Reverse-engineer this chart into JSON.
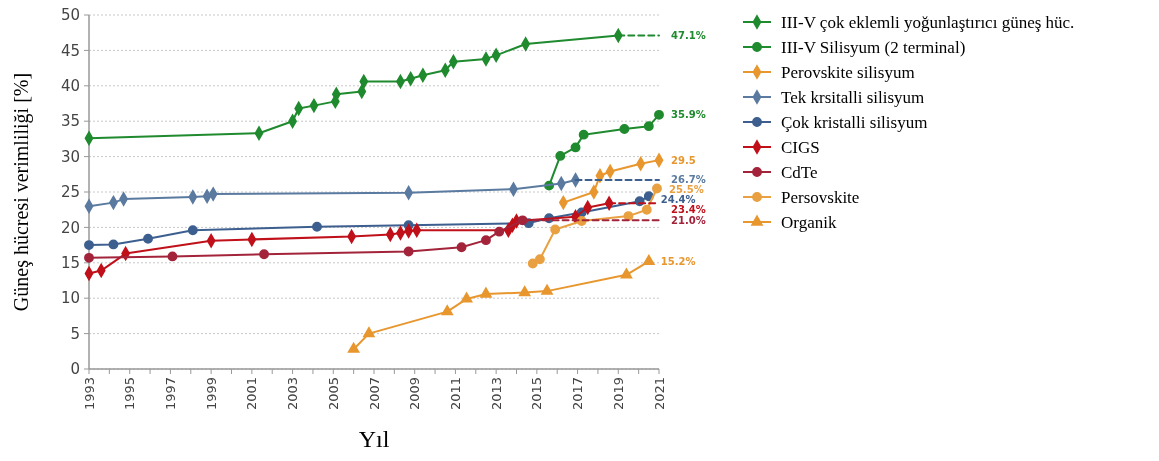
{
  "chart_data": {
    "type": "line",
    "xlabel": "Yıl",
    "ylabel": "Güneş hücresi verimliliği [%]",
    "xlim": [
      1993,
      2021
    ],
    "ylim": [
      0,
      50
    ],
    "xticks": [
      1993,
      {
        "value": 1994,
        "label": null
      },
      1995,
      {
        "value": 1996,
        "label": null
      },
      1997,
      {
        "value": 1998,
        "label": null
      },
      1999,
      {
        "value": 2000,
        "label": null
      },
      2001,
      {
        "value": 2002,
        "label": null
      },
      2003,
      {
        "value": 2004,
        "label": null
      },
      2005,
      {
        "value": 2006,
        "label": null
      },
      2007,
      {
        "value": 2008,
        "label": null
      },
      2009,
      {
        "value": 2010,
        "label": null
      },
      2011,
      {
        "value": 2012,
        "label": null
      },
      2013,
      {
        "value": 2014,
        "label": null
      },
      2015,
      {
        "value": 2016,
        "label": null
      },
      2017,
      {
        "value": 2018,
        "label": null
      },
      2019,
      {
        "value": 2020,
        "label": null
      },
      2021
    ],
    "yticks": [
      0,
      5,
      10,
      15,
      20,
      25,
      30,
      35,
      40,
      45,
      50
    ],
    "grid": "y",
    "legend": "right",
    "line_style": "solid",
    "series": [
      {
        "name": "III-V çok eklemli yoğunlaştırıcı güneş hüc.",
        "color": "#1f8a2e",
        "marker": "diamond",
        "x": [
          1993,
          2001.35,
          2003,
          2003.3,
          2004.05,
          2005.1,
          2005.15,
          2006.4,
          2006.5,
          2008.3,
          2008.8,
          2009.4,
          2010.5,
          2010.9,
          2012.5,
          2013,
          2014.45,
          2019
        ],
        "values": [
          32.6,
          33.3,
          35,
          36.8,
          37.2,
          37.8,
          38.8,
          39.2,
          40.6,
          40.6,
          41,
          41.5,
          42.2,
          43.4,
          43.8,
          44.3,
          45.9,
          47.1
        ]
      },
      {
        "name": "III-V Silisyum (2 terminal)",
        "color": "#1f8a2e",
        "marker": "circle",
        "x": [
          2015.6,
          2016.15,
          2016.9,
          2017.3,
          2019.3,
          2020.5,
          2021
        ],
        "values": [
          25.9,
          30.1,
          31.3,
          33.1,
          33.9,
          34.3,
          35.9
        ]
      },
      {
        "name": "Perovskite silisyum",
        "color": "#e8962e",
        "marker": "diamond",
        "x": [
          2016.3,
          2017.8,
          2018.1,
          2018.6,
          2020.1,
          2021
        ],
        "values": [
          23.5,
          25,
          27.3,
          27.9,
          29,
          29.5
        ]
      },
      {
        "name": "Tek krsitalli silisyum",
        "color": "#5a7aa0",
        "marker": "diamond",
        "x": [
          1993,
          1994.2,
          1994.7,
          1998.1,
          1998.8,
          1999.1,
          2008.7,
          2013.85,
          2016.2,
          2016.9
        ],
        "values": [
          23,
          23.5,
          24,
          24.3,
          24.4,
          24.7,
          24.9,
          25.4,
          26.2,
          26.7
        ]
      },
      {
        "name": "Çok kristalli silisyum",
        "color": "#3c5f8f",
        "marker": "circle",
        "x": [
          1993,
          1994.2,
          1995.9,
          1998.1,
          2004.2,
          2008.7,
          2014.6,
          2015.6,
          2017.2,
          2020.05,
          2020.5
        ],
        "values": [
          17.5,
          17.6,
          18.4,
          19.6,
          20.1,
          20.3,
          20.6,
          21.3,
          22.1,
          23.7,
          24.4
        ]
      },
      {
        "name": "CIGS",
        "color": "#c0101a",
        "marker": "diamond",
        "x": [
          1993,
          1993.6,
          1994.8,
          1999,
          2001,
          2005.9,
          2007.8,
          2008.3,
          2008.7,
          2009.1,
          2013.6,
          2013.8,
          2014,
          2016.9,
          2017.5,
          2018.55
        ],
        "values": [
          13.5,
          13.9,
          16.3,
          18.1,
          18.3,
          18.7,
          19,
          19.2,
          19.5,
          19.6,
          19.6,
          20.3,
          20.9,
          21.5,
          22.8,
          23.4
        ]
      },
      {
        "name": "CdTe",
        "color": "#a3243a",
        "marker": "circle",
        "x": [
          1993,
          1997.1,
          2001.6,
          2008.7,
          2011.3,
          2012.5,
          2013.15,
          2014.3
        ],
        "values": [
          15.7,
          15.9,
          16.2,
          16.6,
          17.2,
          18.2,
          19.4,
          21
        ]
      },
      {
        "name": "Persovskite",
        "color": "#e8a040",
        "marker": "circle",
        "x": [
          2014.8,
          2015.15,
          2015.9,
          2017.2,
          2019.5,
          2020.4,
          2020.9
        ],
        "values": [
          14.9,
          15.5,
          19.7,
          20.9,
          21.6,
          22.5,
          25.5
        ]
      },
      {
        "name": "Organik",
        "color": "#e8962e",
        "marker": "triangle",
        "x": [
          2006,
          2006.75,
          2010.6,
          2011.55,
          2012.5,
          2014.4,
          2015.5,
          2019.4,
          2020.5
        ],
        "values": [
          2.8,
          5,
          8.1,
          9.9,
          10.6,
          10.8,
          11,
          13.3,
          15.2
        ]
      },
      {
        "color": "#1f8a2e",
        "marker": "none",
        "line_style": "dashed",
        "x": [
          2019,
          2021
        ],
        "values": [
          47.1,
          47.1
        ]
      },
      {
        "color": "#3c5f8f",
        "marker": "none",
        "line_style": "dashed",
        "x": [
          2016.9,
          2021
        ],
        "values": [
          26.7,
          26.7
        ]
      },
      {
        "color": "#c0101a",
        "marker": "none",
        "line_style": "dashed",
        "x": [
          2018.55,
          2021
        ],
        "values": [
          23.4,
          23.4
        ]
      },
      {
        "color": "#a3243a",
        "marker": "none",
        "line_style": "dashed",
        "x": [
          2014.3,
          2021
        ],
        "values": [
          21,
          21
        ]
      }
    ],
    "annotations": [
      {
        "text": "47.1%",
        "x": 2021,
        "y": 47.1
      },
      {
        "text": "35.9%",
        "x": 2021,
        "y": 35.9
      },
      {
        "text": "29.5",
        "x": 2021,
        "y": 29.5
      },
      {
        "text": "26.7%",
        "x": 2021,
        "y": 26.7
      },
      {
        "text": "25.5%",
        "x": 2020.9,
        "y": 25.5
      },
      {
        "text": "24.4%",
        "x": 2020.5,
        "y": 24.4
      },
      {
        "text": "23.4%",
        "x": 2021,
        "y": 23.4
      },
      {
        "text": "21.0%",
        "x": 2021,
        "y": 21
      },
      {
        "text": "15.2%",
        "x": 2020.5,
        "y": 15.2
      }
    ]
  }
}
